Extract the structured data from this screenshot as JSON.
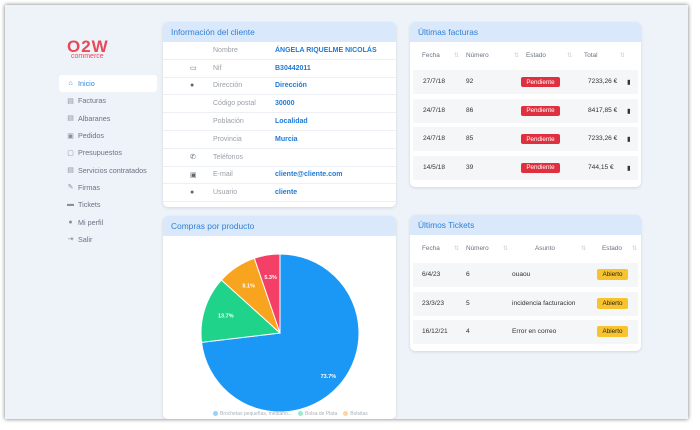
{
  "brand": {
    "mark": "O2W",
    "sub": "commerce",
    "color": "#e74a57"
  },
  "nav": [
    {
      "label": "Inicio",
      "icon": "home-icon",
      "glyph": "⌂",
      "active": true
    },
    {
      "label": "Facturas",
      "icon": "invoice-icon",
      "glyph": "▤"
    },
    {
      "label": "Albaranes",
      "icon": "delivery-note-icon",
      "glyph": "▤"
    },
    {
      "label": "Pedidos",
      "icon": "order-icon",
      "glyph": "▣"
    },
    {
      "label": "Presupuestos",
      "icon": "budget-icon",
      "glyph": "▢"
    },
    {
      "label": "Servicios contratados",
      "icon": "services-icon",
      "glyph": "▤"
    },
    {
      "label": "Firmas",
      "icon": "signature-icon",
      "glyph": "✎"
    },
    {
      "label": "Tickets",
      "icon": "ticket-icon",
      "glyph": "▬"
    },
    {
      "label": "Mi perfil",
      "icon": "user-icon",
      "glyph": "●"
    },
    {
      "label": "Salir",
      "icon": "logout-icon",
      "glyph": "⇥"
    }
  ],
  "client": {
    "title": "Información del cliente",
    "rows": [
      {
        "label": "Nombre",
        "value": "ÁNGELA RIQUELME NICOLÁS",
        "icon": "",
        "glyph": ""
      },
      {
        "label": "Nif",
        "value": "B30442011",
        "icon": "id-card-icon",
        "glyph": "▭"
      },
      {
        "label": "Dirección",
        "value": "Dirección",
        "icon": "location-pin-icon",
        "glyph": "●"
      },
      {
        "label": "Código postal",
        "value": "30000",
        "icon": "",
        "glyph": ""
      },
      {
        "label": "Población",
        "value": "Localidad",
        "icon": "",
        "glyph": ""
      },
      {
        "label": "Provincia",
        "value": "Murcia",
        "icon": "",
        "glyph": ""
      },
      {
        "label": "Teléfonos",
        "value": "",
        "icon": "phone-icon",
        "glyph": "✆"
      },
      {
        "label": "E-mail",
        "value": "cliente@cliente.com",
        "icon": "email-icon",
        "glyph": "▣"
      },
      {
        "label": "Usuario",
        "value": "cliente",
        "icon": "user-icon",
        "glyph": "●"
      }
    ]
  },
  "invoices": {
    "title": "Últimas facturas",
    "headers": [
      "Fecha",
      "Número",
      "Estado",
      "Total"
    ],
    "rows": [
      {
        "fecha": "27/7/18",
        "numero": "92",
        "estado": "Pendiente",
        "total": "7233,26 €"
      },
      {
        "fecha": "24/7/18",
        "numero": "86",
        "estado": "Pendiente",
        "total": "8417,85 €"
      },
      {
        "fecha": "24/7/18",
        "numero": "85",
        "estado": "Pendiente",
        "total": "7233,26 €"
      },
      {
        "fecha": "14/5/18",
        "numero": "39",
        "estado": "Pendiente",
        "total": "744,15 €"
      }
    ]
  },
  "tickets": {
    "title": "Últimos Tickets",
    "headers": [
      "Fecha",
      "Número",
      "Asunto",
      "Estado"
    ],
    "rows": [
      {
        "fecha": "6/4/23",
        "numero": "6",
        "asunto": "ouaou",
        "estado": "Abierto"
      },
      {
        "fecha": "23/3/23",
        "numero": "5",
        "asunto": "incidencia facturacion",
        "estado": "Abierto"
      },
      {
        "fecha": "16/12/21",
        "numero": "4",
        "asunto": "Error en correo",
        "estado": "Abierto"
      }
    ]
  },
  "chart": {
    "title": "Compras por producto"
  },
  "chart_data": {
    "type": "pie",
    "slices": [
      {
        "label": "",
        "value": 73.7,
        "display": "73.7%",
        "color": "#1b98f5"
      },
      {
        "label": "",
        "value": 13.7,
        "display": "13.7%",
        "color": "#1fd38a"
      },
      {
        "label": "",
        "value": 8.1,
        "display": "8.1%",
        "color": "#f8a41e"
      },
      {
        "label": "",
        "value": 5.3,
        "display": "5.3%",
        "color": "#f43f66"
      }
    ],
    "legend": [
      "Brochetas pequeñas, mediano...",
      "Bolsa de Plata",
      "Bolsitas"
    ],
    "legend_placement": "bottom"
  },
  "colors": {
    "accent": "#2f8ae0",
    "header_bg": "#d9e9fb",
    "pending": "#e0303f",
    "open": "#f7c32e"
  }
}
